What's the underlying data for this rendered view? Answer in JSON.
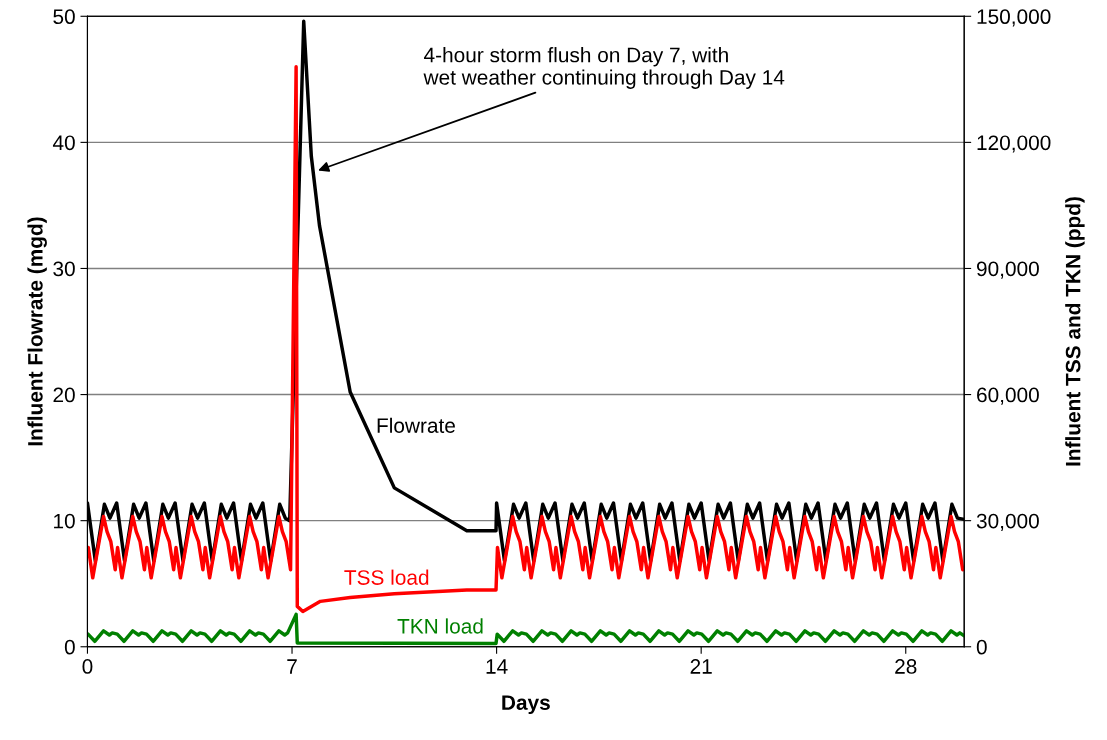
{
  "chart_data": {
    "type": "line",
    "xlabel": "Days",
    "ylabel": "Influent Flowrate (mgd)",
    "y2label": "Influent TSS and TKN (ppd)",
    "xlim": [
      0,
      30
    ],
    "xticks": [
      0,
      7,
      14,
      21,
      28
    ],
    "ylim": [
      0,
      50
    ],
    "yticks": [
      0,
      10,
      20,
      30,
      40,
      50
    ],
    "y2lim": [
      0,
      150000
    ],
    "y2ticks": [
      {
        "value": 0,
        "label": "0"
      },
      {
        "value": 30000,
        "label": "30,000"
      },
      {
        "value": 60000,
        "label": "60,000"
      },
      {
        "value": 90000,
        "label": "90,000"
      },
      {
        "value": 120000,
        "label": "120,000"
      },
      {
        "value": 150000,
        "label": "150,000"
      }
    ],
    "grid": "y",
    "legend": false,
    "annotations": [
      {
        "text": "4-hour storm flush on Day 7, with\nwet weather continuing through Day 14",
        "x": 7.8,
        "y": 37.7
      }
    ],
    "series": [
      {
        "name": "Flowrate",
        "color": "#000000",
        "x": [
          0,
          0.27,
          0.58,
          0.77,
          1,
          1.27,
          1.58,
          1.77,
          2,
          2.27,
          2.58,
          2.77,
          3,
          3.27,
          3.58,
          3.77,
          4,
          4.27,
          4.58,
          4.77,
          5,
          5.27,
          5.58,
          5.77,
          6,
          6.27,
          6.58,
          6.77,
          6.92,
          7.4,
          7.66,
          7.94,
          8.99,
          10.5,
          12.98,
          13.98,
          14,
          14.27,
          14.58,
          14.77,
          15,
          15.27,
          15.58,
          15.77,
          16,
          16.27,
          16.58,
          16.77,
          17,
          17.27,
          17.58,
          17.77,
          18,
          18.27,
          18.58,
          18.77,
          19,
          19.27,
          19.58,
          19.77,
          20,
          20.27,
          20.58,
          20.77,
          21,
          21.27,
          21.58,
          21.77,
          22,
          22.27,
          22.58,
          22.77,
          23,
          23.27,
          23.58,
          23.77,
          24,
          24.27,
          24.58,
          24.77,
          25,
          25.27,
          25.58,
          25.77,
          26,
          26.27,
          26.58,
          26.77,
          27,
          27.27,
          27.58,
          27.77,
          28,
          28.27,
          28.58,
          28.77,
          29,
          29.27,
          29.58,
          29.77,
          30
        ],
        "values": [
          11.4,
          6.8,
          11.3,
          10.2,
          11.4,
          6.8,
          11.3,
          10.2,
          11.4,
          6.8,
          11.3,
          10.2,
          11.4,
          6.8,
          11.3,
          10.2,
          11.4,
          6.8,
          11.3,
          10.2,
          11.4,
          6.8,
          11.3,
          10.2,
          11.4,
          6.8,
          11.3,
          10.2,
          10.0,
          49.6,
          38.9,
          33.4,
          20.2,
          12.6,
          9.2,
          9.2,
          11.4,
          6.8,
          11.3,
          10.2,
          11.4,
          6.8,
          11.3,
          10.2,
          11.4,
          6.8,
          11.3,
          10.2,
          11.4,
          6.8,
          11.3,
          10.2,
          11.4,
          6.8,
          11.3,
          10.2,
          11.4,
          6.8,
          11.3,
          10.2,
          11.4,
          6.8,
          11.3,
          10.2,
          11.4,
          6.8,
          11.3,
          10.2,
          11.4,
          6.8,
          11.3,
          10.2,
          11.4,
          6.8,
          11.3,
          10.2,
          11.4,
          6.8,
          11.3,
          10.2,
          11.4,
          6.8,
          11.3,
          10.2,
          11.4,
          6.8,
          11.3,
          10.2,
          11.4,
          6.8,
          11.3,
          10.2,
          11.4,
          6.8,
          11.3,
          10.2,
          11.4,
          6.8,
          11.3,
          10.2,
          10.1
        ]
      },
      {
        "name": "TSS load",
        "color": "#ff0000",
        "axis": "y2",
        "x": [
          0.03,
          0.18,
          0.55,
          0.67,
          0.8,
          0.95,
          1.03,
          1.18,
          1.55,
          1.67,
          1.8,
          1.95,
          2.03,
          2.18,
          2.55,
          2.67,
          2.8,
          2.95,
          3.03,
          3.18,
          3.55,
          3.67,
          3.8,
          3.95,
          4.03,
          4.18,
          4.55,
          4.67,
          4.8,
          4.95,
          5.03,
          5.18,
          5.55,
          5.67,
          5.8,
          5.95,
          6.03,
          6.18,
          6.55,
          6.67,
          6.8,
          6.95,
          7.14,
          7.18,
          7.37,
          7.97,
          8.99,
          10.5,
          12.98,
          13.98,
          14.03,
          14.18,
          14.55,
          14.67,
          14.8,
          14.95,
          15.03,
          15.18,
          15.55,
          15.67,
          15.8,
          15.95,
          16.03,
          16.18,
          16.55,
          16.67,
          16.8,
          16.95,
          17.03,
          17.18,
          17.55,
          17.67,
          17.8,
          17.95,
          18.03,
          18.18,
          18.55,
          18.67,
          18.8,
          18.95,
          19.03,
          19.18,
          19.55,
          19.67,
          19.8,
          19.95,
          20.03,
          20.18,
          20.55,
          20.67,
          20.8,
          20.95,
          21.03,
          21.18,
          21.55,
          21.67,
          21.8,
          21.95,
          22.03,
          22.18,
          22.55,
          22.67,
          22.8,
          22.95,
          23.03,
          23.18,
          23.55,
          23.67,
          23.8,
          23.95,
          24.03,
          24.18,
          24.55,
          24.67,
          24.8,
          24.95,
          25.03,
          25.18,
          25.55,
          25.67,
          25.8,
          25.95,
          26.03,
          26.18,
          26.55,
          26.67,
          26.8,
          26.95,
          27.03,
          27.18,
          27.55,
          27.67,
          27.8,
          27.95,
          28.03,
          28.18,
          28.55,
          28.67,
          28.8,
          28.95,
          29.03,
          29.18,
          29.55,
          29.67,
          29.8,
          29.95
        ],
        "values": [
          23600,
          16400,
          31000,
          27400,
          25000,
          18300,
          23600,
          16400,
          31000,
          27400,
          25000,
          18300,
          23600,
          16400,
          31000,
          27400,
          25000,
          18300,
          23600,
          16400,
          31000,
          27400,
          25000,
          18300,
          23600,
          16400,
          31000,
          27400,
          25000,
          18300,
          23600,
          16400,
          31000,
          27400,
          25000,
          18300,
          23600,
          16400,
          31000,
          27400,
          25000,
          18300,
          138000,
          9600,
          8400,
          10800,
          11700,
          12600,
          13500,
          13500,
          23600,
          16400,
          31000,
          27400,
          25000,
          18300,
          23600,
          16400,
          31000,
          27400,
          25000,
          18300,
          23600,
          16400,
          31000,
          27400,
          25000,
          18300,
          23600,
          16400,
          31000,
          27400,
          25000,
          18300,
          23600,
          16400,
          31000,
          27400,
          25000,
          18300,
          23600,
          16400,
          31000,
          27400,
          25000,
          18300,
          23600,
          16400,
          31000,
          27400,
          25000,
          18300,
          23600,
          16400,
          31000,
          27400,
          25000,
          18300,
          23600,
          16400,
          31000,
          27400,
          25000,
          18300,
          23600,
          16400,
          31000,
          27400,
          25000,
          18300,
          23600,
          16400,
          31000,
          27400,
          25000,
          18300,
          23600,
          16400,
          31000,
          27400,
          25000,
          18300,
          23600,
          16400,
          31000,
          27400,
          25000,
          18300,
          23600,
          16400,
          31000,
          27400,
          25000,
          18300,
          23600,
          16400,
          31000,
          27400,
          25000,
          18300,
          23600,
          16400,
          31000,
          27400,
          25000,
          18300
        ]
      },
      {
        "name": "TKN load",
        "color": "#008000",
        "axis": "y2",
        "x": [
          0.02,
          0.25,
          0.55,
          0.75,
          0.85,
          1.02,
          1.25,
          1.55,
          1.75,
          1.85,
          2.02,
          2.25,
          2.55,
          2.75,
          2.85,
          3.02,
          3.25,
          3.55,
          3.75,
          3.85,
          4.02,
          4.25,
          4.55,
          4.75,
          4.85,
          5.02,
          5.25,
          5.55,
          5.75,
          5.85,
          6.02,
          6.25,
          6.55,
          6.75,
          6.85,
          7.14,
          7.18,
          13.98,
          14.02,
          14.25,
          14.55,
          14.75,
          14.85,
          15.02,
          15.25,
          15.55,
          15.75,
          15.85,
          16.02,
          16.25,
          16.55,
          16.75,
          16.85,
          17.02,
          17.25,
          17.55,
          17.75,
          17.85,
          18.02,
          18.25,
          18.55,
          18.75,
          18.85,
          19.02,
          19.25,
          19.55,
          19.75,
          19.85,
          20.02,
          20.25,
          20.55,
          20.75,
          20.85,
          21.02,
          21.25,
          21.55,
          21.75,
          21.85,
          22.02,
          22.25,
          22.55,
          22.75,
          22.85,
          23.02,
          23.25,
          23.55,
          23.75,
          23.85,
          24.02,
          24.25,
          24.55,
          24.75,
          24.85,
          25.02,
          25.25,
          25.55,
          25.75,
          25.85,
          26.02,
          26.25,
          26.55,
          26.75,
          26.85,
          27.02,
          27.25,
          27.55,
          27.75,
          27.85,
          28.02,
          28.25,
          28.55,
          28.75,
          28.85,
          29.02,
          29.25,
          29.55,
          29.75,
          29.85,
          30
        ],
        "values": [
          3000,
          1300,
          3800,
          2800,
          3300,
          3000,
          1300,
          3800,
          2800,
          3300,
          3000,
          1300,
          3800,
          2800,
          3300,
          3000,
          1300,
          3800,
          2800,
          3300,
          3000,
          1300,
          3800,
          2800,
          3300,
          3000,
          1300,
          3800,
          2800,
          3300,
          3000,
          1300,
          3800,
          2800,
          3300,
          7700,
          900,
          800,
          3000,
          1300,
          3800,
          2800,
          3300,
          3000,
          1300,
          3800,
          2800,
          3300,
          3000,
          1300,
          3800,
          2800,
          3300,
          3000,
          1300,
          3800,
          2800,
          3300,
          3000,
          1300,
          3800,
          2800,
          3300,
          3000,
          1300,
          3800,
          2800,
          3300,
          3000,
          1300,
          3800,
          2800,
          3300,
          3000,
          1300,
          3800,
          2800,
          3300,
          3000,
          1300,
          3800,
          2800,
          3300,
          3000,
          1300,
          3800,
          2800,
          3300,
          3000,
          1300,
          3800,
          2800,
          3300,
          3000,
          1300,
          3800,
          2800,
          3300,
          3000,
          1300,
          3800,
          2800,
          3300,
          3000,
          1300,
          3800,
          2800,
          3300,
          3000,
          1300,
          3800,
          2800,
          3300,
          3000,
          1300,
          3800,
          2800,
          3300,
          2600
        ]
      }
    ]
  }
}
